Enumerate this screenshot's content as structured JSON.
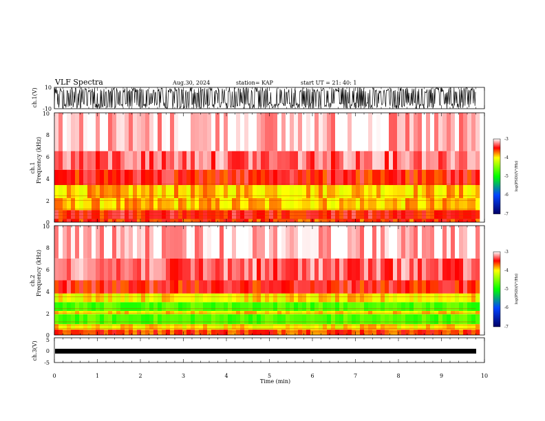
{
  "header": {
    "title": "VLF Spectra",
    "date": "Aug.30, 2024",
    "station": "station= KAP",
    "start_ut": "start  UT  =   21: 40: 1"
  },
  "colors": {
    "cb_minus7": "#000066",
    "cb_minus6": "#0044ff",
    "cb_minus5": "#00ff00",
    "cb_minus4": "#ffff00",
    "cb_minus3_5": "#ff0000",
    "cb_minus3": "#ffffff",
    "spectrum_line": "#cc3300"
  },
  "chart_data": [
    {
      "type": "line",
      "name_label": "ch.1(V)",
      "ylabel": "ch.1(V)",
      "ylim": [
        -10,
        10
      ],
      "yticks": [
        "10",
        "-10"
      ],
      "xlim": [
        0,
        10
      ],
      "description_of_series": "dense waveform saturating between about -10 and 10 V"
    },
    {
      "type": "heatmap",
      "ylabel": "ch.1\nFrequency  (kHz)",
      "ylabel_top": "ch.1",
      "ylabel_bottom": "Frequency  (kHz)",
      "ylim": [
        0,
        10
      ],
      "yticks": [
        "0",
        "2",
        "4",
        "6",
        "8",
        "10"
      ],
      "xlim": [
        0,
        10
      ],
      "data_end_min": 9.8,
      "colorbar": {
        "label": "log(PSD)(V²/Hz)",
        "range": [
          -7,
          -3
        ],
        "ticks": [
          "-3",
          "-4",
          "-5",
          "-6",
          "-7"
        ]
      },
      "bands_khz": [
        {
          "from": 0.0,
          "to": 0.3,
          "level": -3.6
        },
        {
          "from": 0.3,
          "to": 1.1,
          "level": -3.5
        },
        {
          "from": 1.1,
          "to": 2.2,
          "level": -3.9
        },
        {
          "from": 2.2,
          "to": 3.4,
          "level": -3.9
        },
        {
          "from": 3.4,
          "to": 4.8,
          "level": -3.5
        },
        {
          "from": 4.8,
          "to": 6.5,
          "level": -3.3
        },
        {
          "from": 6.5,
          "to": 10.0,
          "level": -3.1
        }
      ]
    },
    {
      "type": "heatmap",
      "ylabel_top": "ch.2",
      "ylabel_bottom": "Frequency  (kHz)",
      "ylim": [
        0,
        10
      ],
      "yticks": [
        "0",
        "2",
        "4",
        "6",
        "8",
        "10"
      ],
      "xlim": [
        0,
        10
      ],
      "data_end_min": 9.8,
      "colorbar": {
        "label": "log(PSD)(V²/Hz)",
        "range": [
          -7,
          -3
        ],
        "ticks": [
          "-3",
          "-4",
          "-5",
          "-6",
          "-7"
        ]
      },
      "bands_khz": [
        {
          "from": 0.0,
          "to": 0.5,
          "level": -3.6
        },
        {
          "from": 0.5,
          "to": 1.0,
          "level": -4.0
        },
        {
          "from": 1.0,
          "to": 1.9,
          "level": -4.7
        },
        {
          "from": 1.9,
          "to": 2.2,
          "level": -4.0
        },
        {
          "from": 2.2,
          "to": 3.0,
          "level": -4.7
        },
        {
          "from": 3.0,
          "to": 3.8,
          "level": -4.0
        },
        {
          "from": 3.8,
          "to": 5.0,
          "level": -3.5
        },
        {
          "from": 5.0,
          "to": 7.0,
          "level": -3.3
        },
        {
          "from": 7.0,
          "to": 10.0,
          "level": -3.1
        }
      ]
    },
    {
      "type": "line",
      "ylabel": "ch.3(V)",
      "ylim": [
        -5,
        5
      ],
      "yticks": [
        "5",
        "0",
        "-5"
      ],
      "xlim": [
        0,
        10
      ],
      "xlabel": "Time  (min)",
      "xticks": [
        "0",
        "1",
        "2",
        "3",
        "4",
        "5",
        "6",
        "7",
        "8",
        "9",
        "10"
      ],
      "description_of_series": "thin band near 0 V"
    }
  ]
}
